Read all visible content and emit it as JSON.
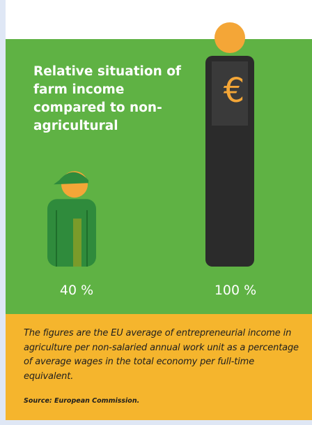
{
  "chart_data": {
    "type": "bar",
    "title": "Relative situation of farm income compared to non-agricultural",
    "categories": [
      "Farm income",
      "Non-agricultural income"
    ],
    "values": [
      40,
      100
    ],
    "value_labels": [
      "40 %",
      "100 %"
    ],
    "unit": "%",
    "ylim": [
      0,
      100
    ],
    "grid": false
  },
  "caption": {
    "text": "The figures are the EU average of entrepreneurial income in agriculture per non-salaried annual work unit as a percentage of average wages in the total economy per full-time equivalent.",
    "source": "Source: European Commission."
  },
  "icons": {
    "farmer": "farmer-figure-icon",
    "worker": "worker-figure-icon",
    "currency_symbol": "€"
  },
  "colors": {
    "green_panel": "#5fb244",
    "caption_panel": "#f5b52d",
    "farmer_body": "#2f8b3c",
    "worker_body": "#2b2b2b",
    "skin": "#f4a637"
  }
}
